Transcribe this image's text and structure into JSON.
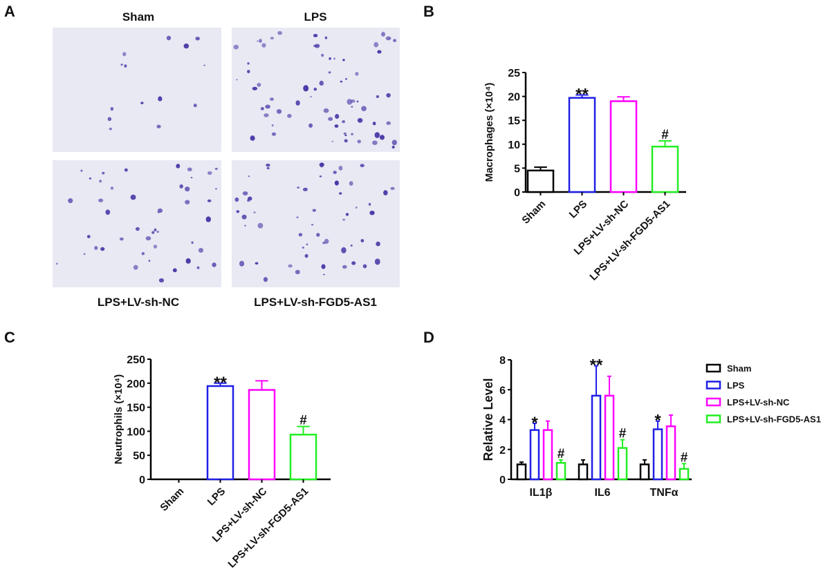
{
  "panel_labels": [
    "A",
    "B",
    "C",
    "D"
  ],
  "micrographs": {
    "titles": [
      "Sham",
      "LPS",
      "LPS+LV-sh-NC",
      "LPS+LV-sh-FGD5-AS1"
    ],
    "background": "#e8e9f3",
    "stain_color": "#4a3aa8"
  },
  "groups": [
    "Sham",
    "LPS",
    "LPS+LV-sh-NC",
    "LPS+LV-sh-FGD5-AS1"
  ],
  "colors": {
    "Sham": "#000000",
    "LPS": "#1f1fe6",
    "LPS+LV-sh-NC": "#ff00ff",
    "LPS+LV-sh-FGD5-AS1": "#22ee22"
  },
  "chart_data": [
    {
      "panel": "B",
      "type": "bar",
      "categories": [
        "Sham",
        "LPS",
        "LPS+LV-sh-NC",
        "LPS+LV-sh-FGD5-AS1"
      ],
      "values": [
        4.5,
        19.7,
        19.0,
        9.5
      ],
      "errors": [
        0.7,
        0.6,
        0.9,
        1.2
      ],
      "annotations": [
        "",
        "**",
        "",
        "#"
      ],
      "ylabel": "Macrophages (×10⁴)",
      "ylim": [
        0,
        25
      ],
      "yticks": [
        0,
        5,
        10,
        15,
        20,
        25
      ],
      "grid": false
    },
    {
      "panel": "C",
      "type": "bar",
      "categories": [
        "Sham",
        "LPS",
        "LPS+LV-sh-NC",
        "LPS+LV-sh-FGD5-AS1"
      ],
      "values": [
        0,
        194,
        186,
        93
      ],
      "errors": [
        0,
        6,
        19,
        17
      ],
      "annotations": [
        "",
        "**",
        "",
        "#"
      ],
      "ylabel": "Neutrophils (×10⁴)",
      "ylim": [
        0,
        250
      ],
      "yticks": [
        0,
        50,
        100,
        150,
        200,
        250
      ],
      "grid": false
    },
    {
      "panel": "D",
      "type": "bar",
      "categories": [
        "IL1β",
        "IL6",
        "TNFα"
      ],
      "series": [
        {
          "name": "Sham",
          "values": [
            1.0,
            1.0,
            1.0
          ],
          "errors": [
            0.15,
            0.3,
            0.3
          ],
          "annotations": [
            "",
            "",
            ""
          ]
        },
        {
          "name": "LPS",
          "values": [
            3.3,
            5.6,
            3.35
          ],
          "errors": [
            0.45,
            2.0,
            0.55
          ],
          "annotations": [
            "*",
            "**",
            "*"
          ]
        },
        {
          "name": "LPS+LV-sh-NC",
          "values": [
            3.3,
            5.6,
            3.55
          ],
          "errors": [
            0.6,
            1.3,
            0.75
          ],
          "annotations": [
            "",
            "",
            ""
          ]
        },
        {
          "name": "LPS+LV-sh-FGD5-AS1",
          "values": [
            1.1,
            2.1,
            0.7
          ],
          "errors": [
            0.2,
            0.55,
            0.35
          ],
          "annotations": [
            "#",
            "#",
            "#"
          ]
        }
      ],
      "ylabel": "Relative Level",
      "ylim": [
        0,
        8
      ],
      "yticks": [
        0,
        2,
        4,
        6,
        8
      ],
      "legend": "right",
      "grid": false
    }
  ]
}
